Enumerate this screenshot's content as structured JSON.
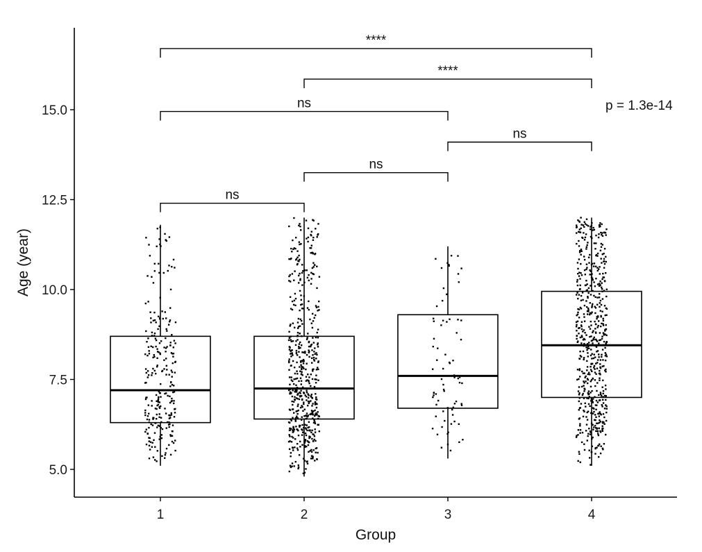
{
  "chart_data": {
    "type": "box",
    "xlabel": "Group",
    "ylabel": "Age (year)",
    "categories": [
      "1",
      "2",
      "3",
      "4"
    ],
    "ylim": [
      4.2,
      17.3
    ],
    "yticks": [
      5.0,
      7.5,
      10.0,
      12.5,
      15.0
    ],
    "ytick_labels": [
      "5.0",
      "7.5",
      "10.0",
      "12.5",
      "15.0"
    ],
    "boxes": [
      {
        "group": "1",
        "min": 5.1,
        "q1": 6.3,
        "median": 7.2,
        "q3": 8.7,
        "max": 11.8,
        "n_points": 260
      },
      {
        "group": "2",
        "min": 4.8,
        "q1": 6.4,
        "median": 7.25,
        "q3": 8.7,
        "max": 12.0,
        "n_points": 560
      },
      {
        "group": "3",
        "min": 5.3,
        "q1": 6.7,
        "median": 7.6,
        "q3": 9.3,
        "max": 11.2,
        "n_points": 75
      },
      {
        "group": "4",
        "min": 5.1,
        "q1": 7.0,
        "median": 8.45,
        "q3": 9.95,
        "max": 12.0,
        "n_points": 600
      }
    ],
    "comparisons": [
      {
        "from": "1",
        "to": "2",
        "label": "ns",
        "y": 12.4
      },
      {
        "from": "2",
        "to": "3",
        "label": "ns",
        "y": 13.25
      },
      {
        "from": "3",
        "to": "4",
        "label": "ns",
        "y": 14.1
      },
      {
        "from": "1",
        "to": "3",
        "label": "ns",
        "y": 14.95
      },
      {
        "from": "2",
        "to": "4",
        "label": "****",
        "y": 15.85
      },
      {
        "from": "1",
        "to": "4",
        "label": "****",
        "y": 16.7
      }
    ],
    "global_test_label": "p = 1.3e-14",
    "global_test_y": 15.0,
    "grid": false,
    "legend": "none"
  }
}
